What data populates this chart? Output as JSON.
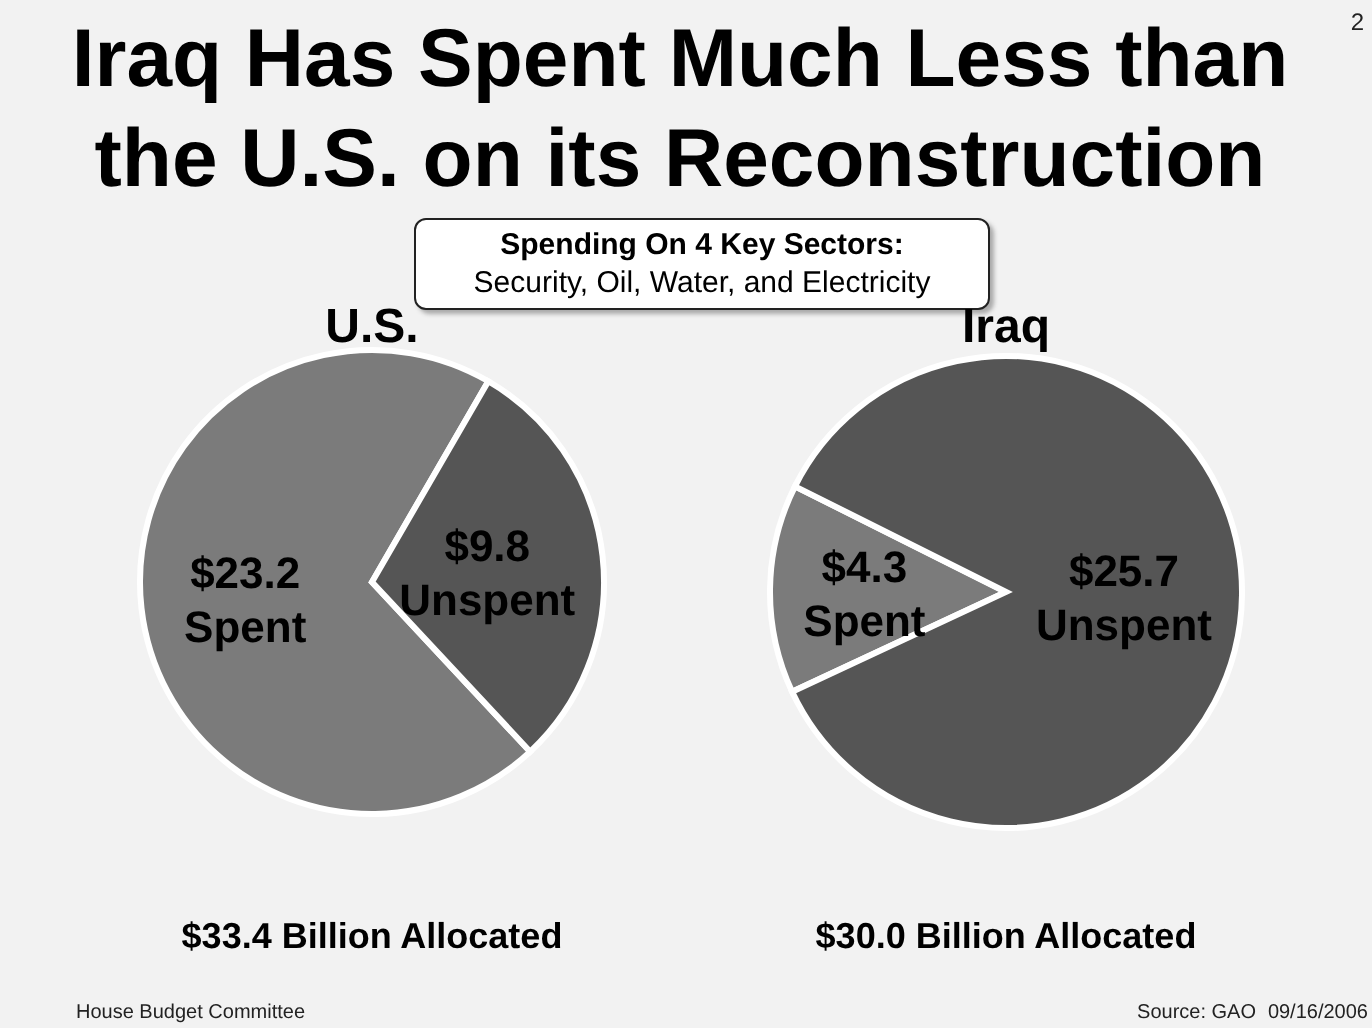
{
  "chart_data": [
    {
      "type": "other",
      "title": "Iraq Has Spent Much Less than the U.S. on its Reconstruction",
      "subtitle": "Spending On 4 Key Sectors:\nSecurity, Oil, Water, and Electricity",
      "annotations": [
        "2",
        "House Budget Committee",
        "Source: GAO",
        "09/16/2006"
      ]
    },
    {
      "type": "pie",
      "title": "U.S.",
      "categories": [
        "Spent",
        "Unspent"
      ],
      "values": [
        23.2,
        9.8
      ],
      "colors": [
        "#7b7b7b",
        "#555555"
      ],
      "value_labels": [
        "$23.2",
        "$9.8"
      ],
      "annotations": [
        "$33.4 Billion Allocated"
      ]
    },
    {
      "type": "pie",
      "title": "Iraq",
      "categories": [
        "Spent",
        "Unspent"
      ],
      "values": [
        4.3,
        25.7
      ],
      "colors": [
        "#7b7b7b",
        "#555555"
      ],
      "value_labels": [
        "$4.3",
        "$25.7"
      ],
      "annotations": [
        "$30.0 Billion Allocated"
      ]
    }
  ]
}
